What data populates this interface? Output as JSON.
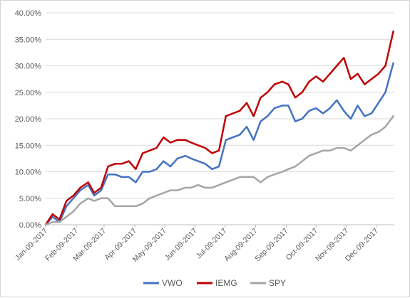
{
  "chart_data": {
    "type": "line",
    "title": "",
    "xlabel": "",
    "ylabel": "",
    "x": [
      "2017-01-09",
      "2017-01-16",
      "2017-01-23",
      "2017-01-30",
      "2017-02-06",
      "2017-02-13",
      "2017-02-21",
      "2017-02-27",
      "2017-03-06",
      "2017-03-13",
      "2017-03-20",
      "2017-03-27",
      "2017-04-03",
      "2017-04-10",
      "2017-04-17",
      "2017-04-24",
      "2017-05-01",
      "2017-05-08",
      "2017-05-15",
      "2017-05-22",
      "2017-05-30",
      "2017-06-05",
      "2017-06-12",
      "2017-06-19",
      "2017-06-26",
      "2017-07-03",
      "2017-07-10",
      "2017-07-17",
      "2017-07-24",
      "2017-07-31",
      "2017-08-07",
      "2017-08-14",
      "2017-08-21",
      "2017-08-28",
      "2017-09-05",
      "2017-09-11",
      "2017-09-18",
      "2017-09-25",
      "2017-10-02",
      "2017-10-09",
      "2017-10-16",
      "2017-10-23",
      "2017-10-30",
      "2017-11-06",
      "2017-11-13",
      "2017-11-20",
      "2017-11-27",
      "2017-12-04",
      "2017-12-11",
      "2017-12-18",
      "2017-12-26"
    ],
    "series": [
      {
        "name": "VWO",
        "color": "#4472c4",
        "values": [
          0.0,
          1.5,
          0.5,
          3.5,
          5.0,
          6.5,
          7.5,
          5.5,
          6.5,
          9.5,
          9.5,
          9.0,
          9.0,
          8.0,
          10.0,
          10.0,
          10.5,
          12.0,
          11.0,
          12.5,
          13.0,
          12.5,
          12.0,
          11.5,
          10.5,
          11.0,
          16.0,
          16.5,
          17.0,
          18.5,
          16.0,
          19.5,
          20.5,
          22.0,
          22.5,
          22.5,
          19.5,
          20.0,
          21.5,
          22.0,
          21.0,
          22.0,
          23.5,
          21.5,
          20.0,
          22.5,
          20.5,
          21.0,
          23.0,
          25.0,
          30.5
        ]
      },
      {
        "name": "IEMG",
        "color": "#c00000",
        "values": [
          0.0,
          2.0,
          1.0,
          4.5,
          5.5,
          7.0,
          8.0,
          6.0,
          7.0,
          11.0,
          11.5,
          11.5,
          12.0,
          10.5,
          13.5,
          14.0,
          14.5,
          16.5,
          15.5,
          16.0,
          16.0,
          15.5,
          15.0,
          14.5,
          13.5,
          14.0,
          20.5,
          21.0,
          21.5,
          23.0,
          20.5,
          24.0,
          25.0,
          26.5,
          27.0,
          26.5,
          24.0,
          25.0,
          27.0,
          28.0,
          27.0,
          28.5,
          30.0,
          31.5,
          27.5,
          28.5,
          26.5,
          27.5,
          28.5,
          30.0,
          36.5
        ]
      },
      {
        "name": "SPY",
        "color": "#a5a5a5",
        "values": [
          0.0,
          0.5,
          0.5,
          1.5,
          2.5,
          4.0,
          5.0,
          4.5,
          5.0,
          5.0,
          3.5,
          3.5,
          3.5,
          3.5,
          4.0,
          5.0,
          5.5,
          6.0,
          6.5,
          6.5,
          7.0,
          7.0,
          7.5,
          7.0,
          7.0,
          7.5,
          8.0,
          8.5,
          9.0,
          9.0,
          9.0,
          8.0,
          9.0,
          9.5,
          10.0,
          10.5,
          11.0,
          12.0,
          13.0,
          13.5,
          14.0,
          14.0,
          14.5,
          14.5,
          14.0,
          15.0,
          16.0,
          17.0,
          17.5,
          18.5,
          20.5
        ]
      }
    ],
    "ylim": [
      0,
      40
    ],
    "ytick_values": [
      0,
      5,
      10,
      15,
      20,
      25,
      30,
      35,
      40
    ],
    "ytick_labels": [
      "0.00%",
      "5.00%",
      "10.00%",
      "15.00%",
      "20.00%",
      "25.00%",
      "30.00%",
      "35.00%",
      "40.00%"
    ],
    "xtick_labels": [
      "Jan-09-2017",
      "Feb-09-2017",
      "Mar-09-2017",
      "Apr-09-2017",
      "May-09-2017",
      "Jun-09-2017",
      "Jul-09-2017",
      "Aug-09-2017",
      "Sep-09-2017",
      "Oct-09-2017",
      "Nov-09-2017",
      "Dec-09-2017"
    ],
    "xtick_dates": [
      "2017-01-09",
      "2017-02-09",
      "2017-03-09",
      "2017-04-09",
      "2017-05-09",
      "2017-06-09",
      "2017-07-09",
      "2017-08-09",
      "2017-09-09",
      "2017-10-09",
      "2017-11-09",
      "2017-12-09"
    ],
    "xlim": [
      "2017-01-09",
      "2017-12-27"
    ],
    "grid": "horizontal",
    "legend_position": "bottom-center"
  }
}
